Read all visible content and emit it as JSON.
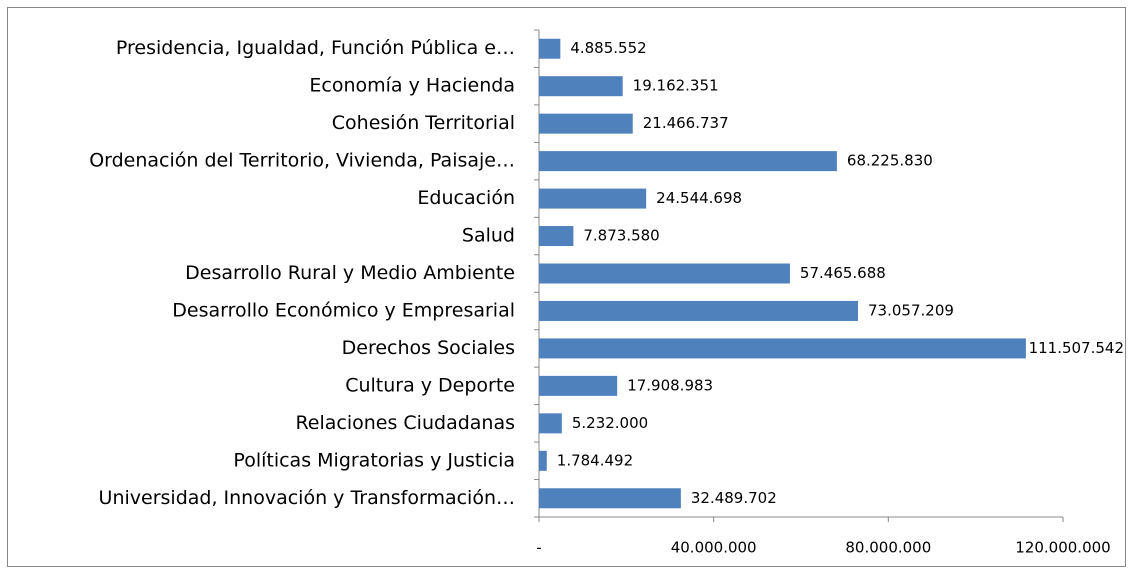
{
  "chart_data": {
    "type": "bar",
    "orientation": "horizontal",
    "categories": [
      "Presidencia, Igualdad, Función Pública e…",
      "Economía y Hacienda",
      "Cohesión Territorial",
      "Ordenación del Territorio, Vivienda, Paisaje…",
      "Educación",
      "Salud",
      "Desarrollo Rural y Medio Ambiente",
      "Desarrollo Económico y Empresarial",
      "Derechos Sociales",
      "Cultura y Deporte",
      "Relaciones Ciudadanas",
      "Políticas Migratorias y Justicia",
      "Universidad, Innovación y Transformación…"
    ],
    "values": [
      4885552,
      19162351,
      21466737,
      68225830,
      24544698,
      7873580,
      57465688,
      73057209,
      111507542,
      17908983,
      5232000,
      1784492,
      32489702
    ],
    "value_labels": [
      "4.885.552",
      "19.162.351",
      "21.466.737",
      "68.225.830",
      "24.544.698",
      "7.873.580",
      "57.465.688",
      "73.057.209",
      "111.507.542",
      "17.908.983",
      "5.232.000",
      "1.784.492",
      "32.489.702"
    ],
    "color": "#4f81bd",
    "xlim": [
      0,
      120000000
    ],
    "xticks": [
      {
        "value": 0,
        "label": "-"
      },
      {
        "value": 40000000,
        "label": "40.000.000"
      },
      {
        "value": 80000000,
        "label": "80.000.000"
      },
      {
        "value": 120000000,
        "label": "120.000.000"
      }
    ],
    "grid": false
  }
}
